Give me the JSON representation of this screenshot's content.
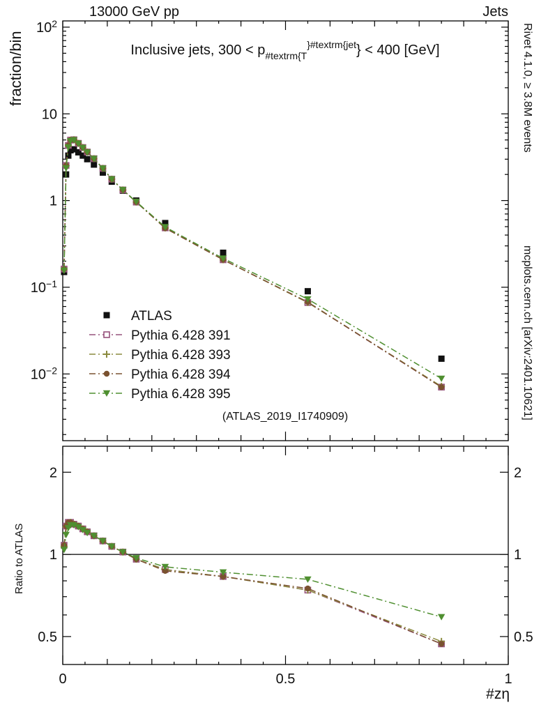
{
  "header": {
    "left": "13000 GeV pp",
    "right": "Jets"
  },
  "title": {
    "pre": "Inclusive jets, 300 < p",
    "sub": "#textrm{T",
    "sup": "}#textrm{jet",
    "post": "} < 400 [GeV]"
  },
  "watermark": "(ATLAS_2019_I1740909)",
  "side_text_top": "Rivet 4.1.0, ≥ 3.8M events",
  "side_text_bottom": "mcplots.cern.ch [arXiv:2401.10621]",
  "axes": {
    "y_top_label": "fraction/bin",
    "y_bottom_label": "Ratio to ATLAS",
    "x_label": "#zη"
  },
  "chart_data": {
    "type": "line",
    "title": "Inclusive jets, 300 < pT^jet < 400 [GeV]",
    "xlabel": "#zη",
    "ylabel_main": "fraction/bin",
    "ylabel_ratio": "Ratio to ATLAS",
    "xlim": [
      0,
      1
    ],
    "main_ylog_range": [
      0.0017,
      118
    ],
    "ratio_ylog_range": [
      0.395,
      2.49
    ],
    "x_ticks": {
      "major": [
        0,
        0.5,
        1
      ],
      "labels": [
        "0",
        "0.5",
        "1"
      ],
      "minor_step": 0.1,
      "subminor_step": 0.05
    },
    "main_y_tick_decades": [
      -2,
      -1,
      0,
      1,
      2
    ],
    "ratio_ticks": {
      "labeled": [
        0.5,
        1,
        2
      ],
      "minor": [
        0.6,
        0.7,
        0.8,
        0.9
      ]
    },
    "x": [
      0.003,
      0.0075,
      0.0125,
      0.0175,
      0.025,
      0.035,
      0.045,
      0.055,
      0.07,
      0.09,
      0.11,
      0.135,
      0.165,
      0.23,
      0.36,
      0.55,
      0.85
    ],
    "atlas": {
      "name": "ATLAS",
      "marker": "square-filled",
      "color": "#111111",
      "values": [
        0.15,
        2.0,
        3.3,
        3.8,
        3.9,
        3.6,
        3.3,
        3.0,
        2.6,
        2.1,
        1.65,
        1.3,
        1.0,
        0.55,
        0.25,
        0.09,
        0.015
      ]
    },
    "series": [
      {
        "name": "Pythia 6.428 391",
        "marker": "square-open",
        "color": "#96527c",
        "ratios": [
          1.08,
          1.27,
          1.31,
          1.31,
          1.29,
          1.27,
          1.24,
          1.21,
          1.17,
          1.12,
          1.07,
          1.02,
          0.96,
          0.88,
          0.83,
          0.74,
          0.47
        ]
      },
      {
        "name": "Pythia 6.428 393",
        "marker": "cross-open",
        "color": "#8a8a3e",
        "ratios": [
          1.07,
          1.26,
          1.3,
          1.31,
          1.29,
          1.27,
          1.24,
          1.21,
          1.17,
          1.12,
          1.07,
          1.02,
          0.96,
          0.88,
          0.83,
          0.74,
          0.48
        ]
      },
      {
        "name": "Pythia 6.428 394",
        "marker": "circle-filled",
        "color": "#7a5230",
        "ratios": [
          1.08,
          1.27,
          1.31,
          1.31,
          1.29,
          1.27,
          1.24,
          1.21,
          1.17,
          1.12,
          1.07,
          1.02,
          0.96,
          0.87,
          0.83,
          0.75,
          0.47
        ]
      },
      {
        "name": "Pythia 6.428 395",
        "marker": "triangle-down-filled",
        "color": "#4f8f30",
        "ratios": [
          1.04,
          1.18,
          1.25,
          1.28,
          1.28,
          1.26,
          1.23,
          1.2,
          1.17,
          1.12,
          1.07,
          1.02,
          0.97,
          0.9,
          0.86,
          0.81,
          0.59
        ]
      }
    ],
    "legend_position": "left-middle",
    "grid": false
  }
}
